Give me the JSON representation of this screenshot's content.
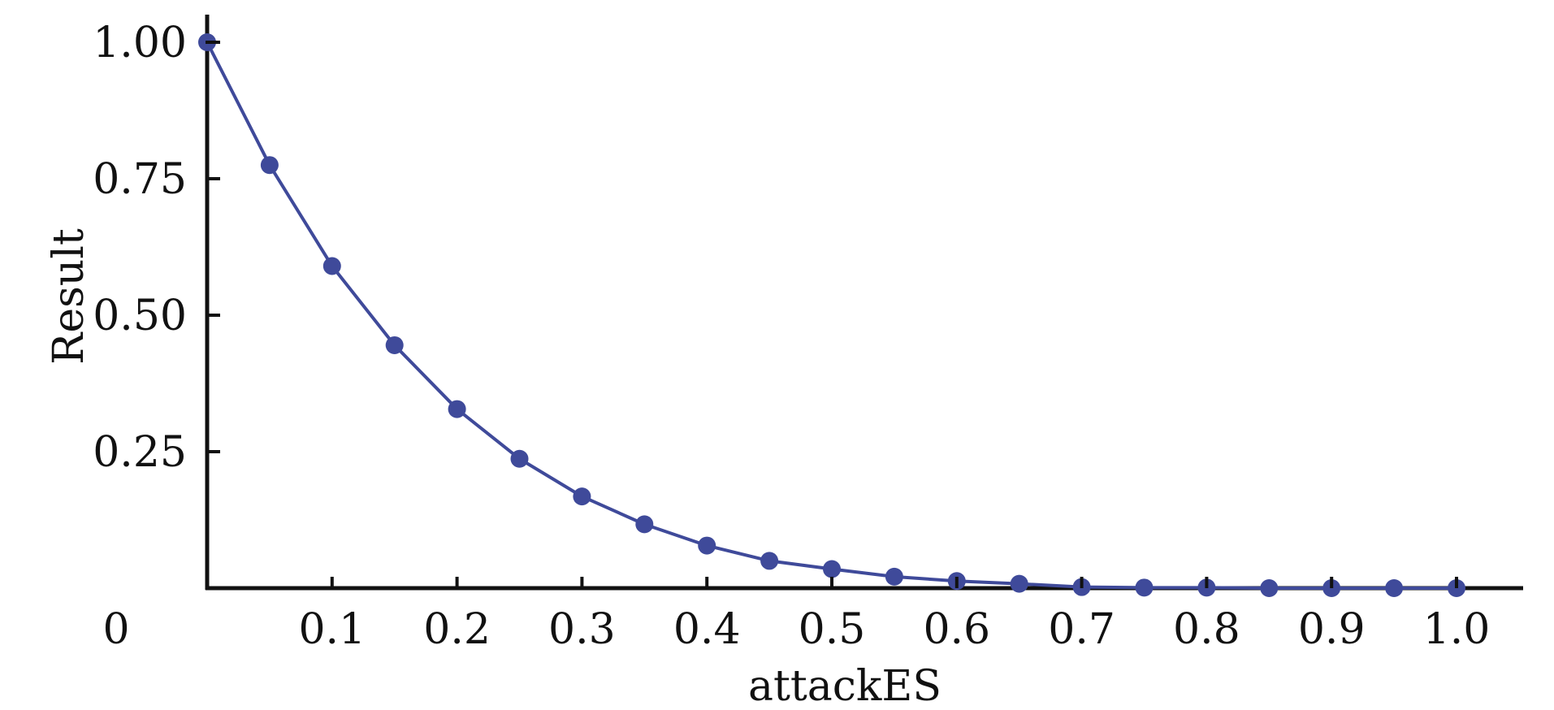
{
  "chart_data": {
    "type": "line",
    "xlabel": "attackES",
    "ylabel": "Result",
    "origin_label": "0",
    "xlim": [
      0,
      1.05
    ],
    "ylim": [
      0,
      1.0
    ],
    "x_ticks": [
      {
        "value": 0.1,
        "label": "0.1"
      },
      {
        "value": 0.2,
        "label": "0.2"
      },
      {
        "value": 0.3,
        "label": "0.3"
      },
      {
        "value": 0.4,
        "label": "0.4"
      },
      {
        "value": 0.5,
        "label": "0.5"
      },
      {
        "value": 0.6,
        "label": "0.6"
      },
      {
        "value": 0.7,
        "label": "0.7"
      },
      {
        "value": 0.8,
        "label": "0.8"
      },
      {
        "value": 0.9,
        "label": "0.9"
      },
      {
        "value": 1.0,
        "label": "1.0"
      }
    ],
    "y_ticks": [
      {
        "value": 0.25,
        "label": "0.25"
      },
      {
        "value": 0.5,
        "label": "0.50"
      },
      {
        "value": 0.75,
        "label": "0.75"
      },
      {
        "value": 1.0,
        "label": "1.00"
      }
    ],
    "grid": false,
    "series": [
      {
        "color": "#3f4a9a",
        "x": [
          0,
          0.05,
          0.1,
          0.15,
          0.2,
          0.25,
          0.3,
          0.35,
          0.4,
          0.45,
          0.5,
          0.55,
          0.6,
          0.65,
          0.7,
          0.75,
          0.8,
          0.85,
          0.9,
          0.95,
          1.0
        ],
        "y": [
          1.0,
          0.775,
          0.59,
          0.445,
          0.328,
          0.237,
          0.168,
          0.117,
          0.078,
          0.05,
          0.035,
          0.021,
          0.013,
          0.008,
          0.002,
          0.001,
          0.001,
          0.0,
          0.0,
          0.0,
          0.0
        ]
      }
    ]
  }
}
